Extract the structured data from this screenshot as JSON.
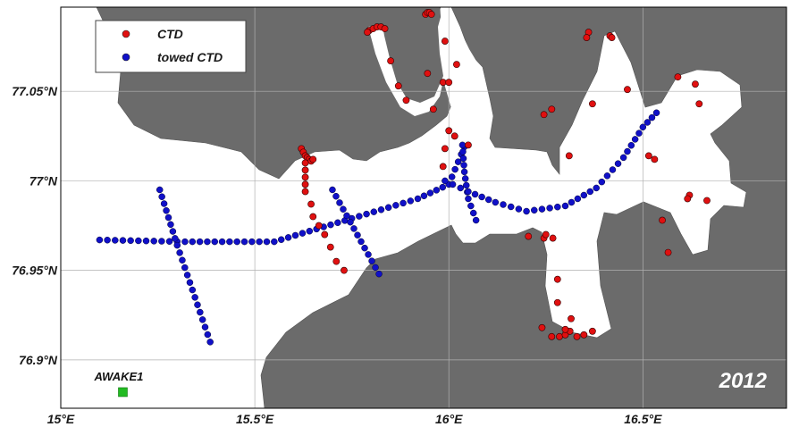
{
  "map": {
    "year": "2012",
    "station": {
      "label": "AWAKE1",
      "lon": 15.16,
      "lat": 76.882,
      "color": "#22bb22"
    },
    "colors": {
      "land": "#6b6b6b",
      "water": "#ffffff",
      "grid": "#b0b0b0",
      "ctd": "#e01010",
      "towed": "#1010c8"
    },
    "x_ticks": [
      {
        "value": 15.0,
        "label": "15°E"
      },
      {
        "value": 15.5,
        "label": "15.5°E"
      },
      {
        "value": 16.0,
        "label": "16°E"
      },
      {
        "value": 16.5,
        "label": "16.5°E"
      }
    ],
    "y_ticks": [
      {
        "value": 77.05,
        "label": "77.05°N"
      },
      {
        "value": 77.0,
        "label": "77°N"
      },
      {
        "value": 76.95,
        "label": "76.95°N"
      },
      {
        "value": 76.9,
        "label": "76.9°N"
      }
    ],
    "legend": [
      {
        "key": "ctd",
        "label": "CTD",
        "color": "#e01010"
      },
      {
        "key": "towed",
        "label": "towed CTD",
        "color": "#1010c8"
      }
    ],
    "ctd_points": [
      [
        15.62,
        77.018
      ],
      [
        15.625,
        77.016
      ],
      [
        15.63,
        77.014
      ],
      [
        15.635,
        77.013
      ],
      [
        15.64,
        77.012
      ],
      [
        15.645,
        77.011
      ],
      [
        15.65,
        77.012
      ],
      [
        15.63,
        77.01
      ],
      [
        15.63,
        77.006
      ],
      [
        15.63,
        77.002
      ],
      [
        15.63,
        76.998
      ],
      [
        15.63,
        76.994
      ],
      [
        15.65,
        76.98
      ],
      [
        15.665,
        76.975
      ],
      [
        15.68,
        76.97
      ],
      [
        15.695,
        76.963
      ],
      [
        15.71,
        76.955
      ],
      [
        15.73,
        76.95
      ],
      [
        15.645,
        76.987
      ],
      [
        15.795,
        77.084
      ],
      [
        15.805,
        77.085
      ],
      [
        15.815,
        77.086
      ],
      [
        15.825,
        77.086
      ],
      [
        15.835,
        77.085
      ],
      [
        15.79,
        77.083
      ],
      [
        15.94,
        77.093
      ],
      [
        15.945,
        77.094
      ],
      [
        15.95,
        77.094
      ],
      [
        15.955,
        77.093
      ],
      [
        15.85,
        77.067
      ],
      [
        15.87,
        77.053
      ],
      [
        15.89,
        77.045
      ],
      [
        15.945,
        77.06
      ],
      [
        15.99,
        77.078
      ],
      [
        16.02,
        77.065
      ],
      [
        15.985,
        77.055
      ],
      [
        16.0,
        77.055
      ],
      [
        15.96,
        77.04
      ],
      [
        16.0,
        77.028
      ],
      [
        16.05,
        77.02
      ],
      [
        15.99,
        77.018
      ],
      [
        15.985,
        77.008
      ],
      [
        16.015,
        77.025
      ],
      [
        16.36,
        77.083
      ],
      [
        16.355,
        77.08
      ],
      [
        16.415,
        77.081
      ],
      [
        16.42,
        77.08
      ],
      [
        16.245,
        77.037
      ],
      [
        16.265,
        77.04
      ],
      [
        16.37,
        77.043
      ],
      [
        16.46,
        77.051
      ],
      [
        16.59,
        77.058
      ],
      [
        16.635,
        77.054
      ],
      [
        16.645,
        77.043
      ],
      [
        16.31,
        77.014
      ],
      [
        16.515,
        77.014
      ],
      [
        16.53,
        77.012
      ],
      [
        16.62,
        76.992
      ],
      [
        16.615,
        76.99
      ],
      [
        16.665,
        76.989
      ],
      [
        16.55,
        76.978
      ],
      [
        16.565,
        76.96
      ],
      [
        16.205,
        76.969
      ],
      [
        16.245,
        76.968
      ],
      [
        16.25,
        76.97
      ],
      [
        16.268,
        76.968
      ],
      [
        16.28,
        76.945
      ],
      [
        16.28,
        76.932
      ],
      [
        16.315,
        76.923
      ],
      [
        16.24,
        76.918
      ],
      [
        16.265,
        76.913
      ],
      [
        16.285,
        76.913
      ],
      [
        16.3,
        76.914
      ],
      [
        16.312,
        76.916
      ],
      [
        16.33,
        76.913
      ],
      [
        16.348,
        76.914
      ],
      [
        16.37,
        76.916
      ],
      [
        16.3,
        76.917
      ]
    ],
    "towed_tracks": [
      [
        [
          15.1,
          76.967
        ],
        [
          15.32,
          76.966
        ],
        [
          15.55,
          76.966
        ],
        [
          15.75,
          76.979
        ],
        [
          15.92,
          76.99
        ],
        [
          16.0,
          76.998
        ],
        [
          16.04,
          77.019
        ]
      ],
      [
        [
          15.255,
          76.995
        ],
        [
          15.3,
          76.964
        ],
        [
          15.385,
          76.91
        ]
      ],
      [
        [
          15.7,
          76.995
        ],
        [
          15.82,
          76.948
        ]
      ],
      [
        [
          16.035,
          77.02
        ],
        [
          16.04,
          77.005
        ],
        [
          16.05,
          76.99
        ],
        [
          16.07,
          76.978
        ]
      ],
      [
        [
          15.99,
          77.0
        ],
        [
          16.05,
          76.994
        ],
        [
          16.12,
          76.988
        ],
        [
          16.2,
          76.983
        ],
        [
          16.3,
          76.986
        ],
        [
          16.38,
          76.996
        ],
        [
          16.45,
          77.013
        ],
        [
          16.5,
          77.03
        ],
        [
          16.535,
          77.038
        ]
      ]
    ]
  }
}
